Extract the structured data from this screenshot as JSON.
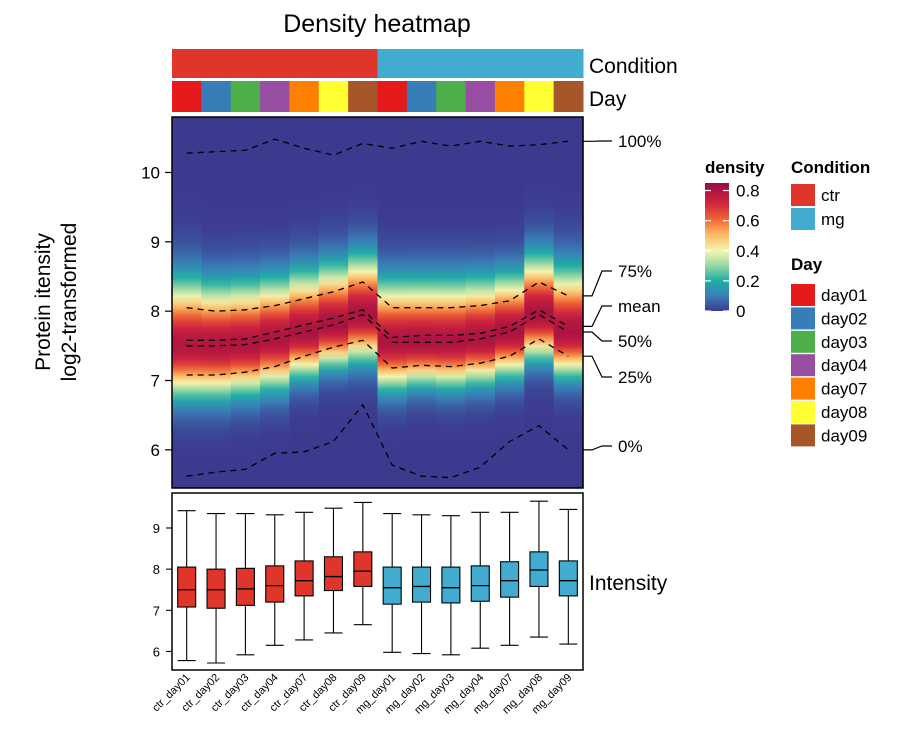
{
  "chart_data": {
    "type": "heatmap",
    "title": "Density heatmap",
    "ylabel_line1": "Protein itensity",
    "ylabel_line2": "log2-transformed",
    "columns": [
      "ctr_day01",
      "ctr_day02",
      "ctr_day03",
      "ctr_day04",
      "ctr_day07",
      "ctr_day08",
      "ctr_day09",
      "mg_day01",
      "mg_day02",
      "mg_day03",
      "mg_day04",
      "mg_day07",
      "mg_day08",
      "mg_day09"
    ],
    "condition": [
      "ctr",
      "ctr",
      "ctr",
      "ctr",
      "ctr",
      "ctr",
      "ctr",
      "mg",
      "mg",
      "mg",
      "mg",
      "mg",
      "mg",
      "mg"
    ],
    "day": [
      "day01",
      "day02",
      "day03",
      "day04",
      "day07",
      "day08",
      "day09",
      "day01",
      "day02",
      "day03",
      "day04",
      "day07",
      "day08",
      "day09"
    ],
    "ylim": [
      5.45,
      10.8
    ],
    "yticks": [
      6,
      7,
      8,
      9,
      10
    ],
    "quantiles": {
      "100%": [
        10.28,
        10.3,
        10.32,
        10.48,
        10.35,
        10.25,
        10.42,
        10.35,
        10.45,
        10.38,
        10.45,
        10.38,
        10.4,
        10.45
      ],
      "75%": [
        8.05,
        8.0,
        8.02,
        8.08,
        8.18,
        8.28,
        8.42,
        8.05,
        8.05,
        8.05,
        8.08,
        8.15,
        8.42,
        8.22
      ],
      "mean": [
        7.58,
        7.58,
        7.6,
        7.7,
        7.8,
        7.9,
        8.02,
        7.62,
        7.65,
        7.65,
        7.68,
        7.78,
        8.02,
        7.78
      ],
      "50%": [
        7.5,
        7.5,
        7.52,
        7.6,
        7.7,
        7.8,
        7.95,
        7.55,
        7.55,
        7.55,
        7.6,
        7.7,
        7.95,
        7.7
      ],
      "25%": [
        7.08,
        7.08,
        7.12,
        7.2,
        7.35,
        7.48,
        7.58,
        7.18,
        7.22,
        7.2,
        7.25,
        7.35,
        7.6,
        7.35
      ],
      "0%": [
        5.62,
        5.68,
        5.72,
        5.95,
        5.97,
        6.12,
        6.65,
        5.78,
        5.62,
        5.6,
        5.75,
        6.12,
        6.35,
        6.0
      ]
    },
    "quantile_labels": [
      "100%",
      "75%",
      "mean",
      "50%",
      "25%",
      "0%"
    ],
    "density_legend": {
      "title": "density",
      "ticks": [
        "0.8",
        "0.6",
        "0.4",
        "0.2",
        "0"
      ],
      "tick_values": [
        0.8,
        0.6,
        0.4,
        0.2,
        0
      ],
      "range": [
        0,
        0.85
      ]
    },
    "condition_legend": {
      "title": "Condition",
      "items": [
        {
          "label": "ctr",
          "color": "#E0352B"
        },
        {
          "label": "mg",
          "color": "#41ACCF"
        }
      ]
    },
    "day_legend": {
      "title": "Day",
      "items": [
        {
          "label": "day01",
          "color": "#E41A1C"
        },
        {
          "label": "day02",
          "color": "#377EB8"
        },
        {
          "label": "day03",
          "color": "#4DAF4A"
        },
        {
          "label": "day04",
          "color": "#984EA3"
        },
        {
          "label": "day07",
          "color": "#FF7F00"
        },
        {
          "label": "day08",
          "color": "#FFFF33"
        },
        {
          "label": "day09",
          "color": "#A65628"
        }
      ]
    },
    "annotation_labels": {
      "condition": "Condition",
      "day": "Day"
    },
    "boxplot": {
      "label": "Intensity",
      "ylim": [
        5.55,
        9.85
      ],
      "yticks": [
        6,
        7,
        8,
        9
      ],
      "stats": [
        {
          "whisker_low": 5.78,
          "q1": 7.08,
          "median": 7.5,
          "q3": 8.05,
          "whisker_high": 9.42
        },
        {
          "whisker_low": 5.72,
          "q1": 7.05,
          "median": 7.5,
          "q3": 8.0,
          "whisker_high": 9.35
        },
        {
          "whisker_low": 5.92,
          "q1": 7.12,
          "median": 7.52,
          "q3": 8.02,
          "whisker_high": 9.35
        },
        {
          "whisker_low": 6.15,
          "q1": 7.2,
          "median": 7.6,
          "q3": 8.08,
          "whisker_high": 9.32
        },
        {
          "whisker_low": 6.28,
          "q1": 7.35,
          "median": 7.72,
          "q3": 8.2,
          "whisker_high": 9.38
        },
        {
          "whisker_low": 6.45,
          "q1": 7.48,
          "median": 7.82,
          "q3": 8.3,
          "whisker_high": 9.48
        },
        {
          "whisker_low": 6.65,
          "q1": 7.58,
          "median": 7.95,
          "q3": 8.42,
          "whisker_high": 9.62
        },
        {
          "whisker_low": 5.98,
          "q1": 7.15,
          "median": 7.55,
          "q3": 8.05,
          "whisker_high": 9.35
        },
        {
          "whisker_low": 5.95,
          "q1": 7.2,
          "median": 7.58,
          "q3": 8.05,
          "whisker_high": 9.32
        },
        {
          "whisker_low": 5.92,
          "q1": 7.18,
          "median": 7.55,
          "q3": 8.05,
          "whisker_high": 9.3
        },
        {
          "whisker_low": 6.08,
          "q1": 7.22,
          "median": 7.6,
          "q3": 8.08,
          "whisker_high": 9.38
        },
        {
          "whisker_low": 6.15,
          "q1": 7.32,
          "median": 7.72,
          "q3": 8.18,
          "whisker_high": 9.38
        },
        {
          "whisker_low": 6.35,
          "q1": 7.58,
          "median": 7.98,
          "q3": 8.42,
          "whisker_high": 9.65
        },
        {
          "whisker_low": 6.18,
          "q1": 7.35,
          "median": 7.72,
          "q3": 8.2,
          "whisker_high": 9.45
        }
      ]
    }
  }
}
